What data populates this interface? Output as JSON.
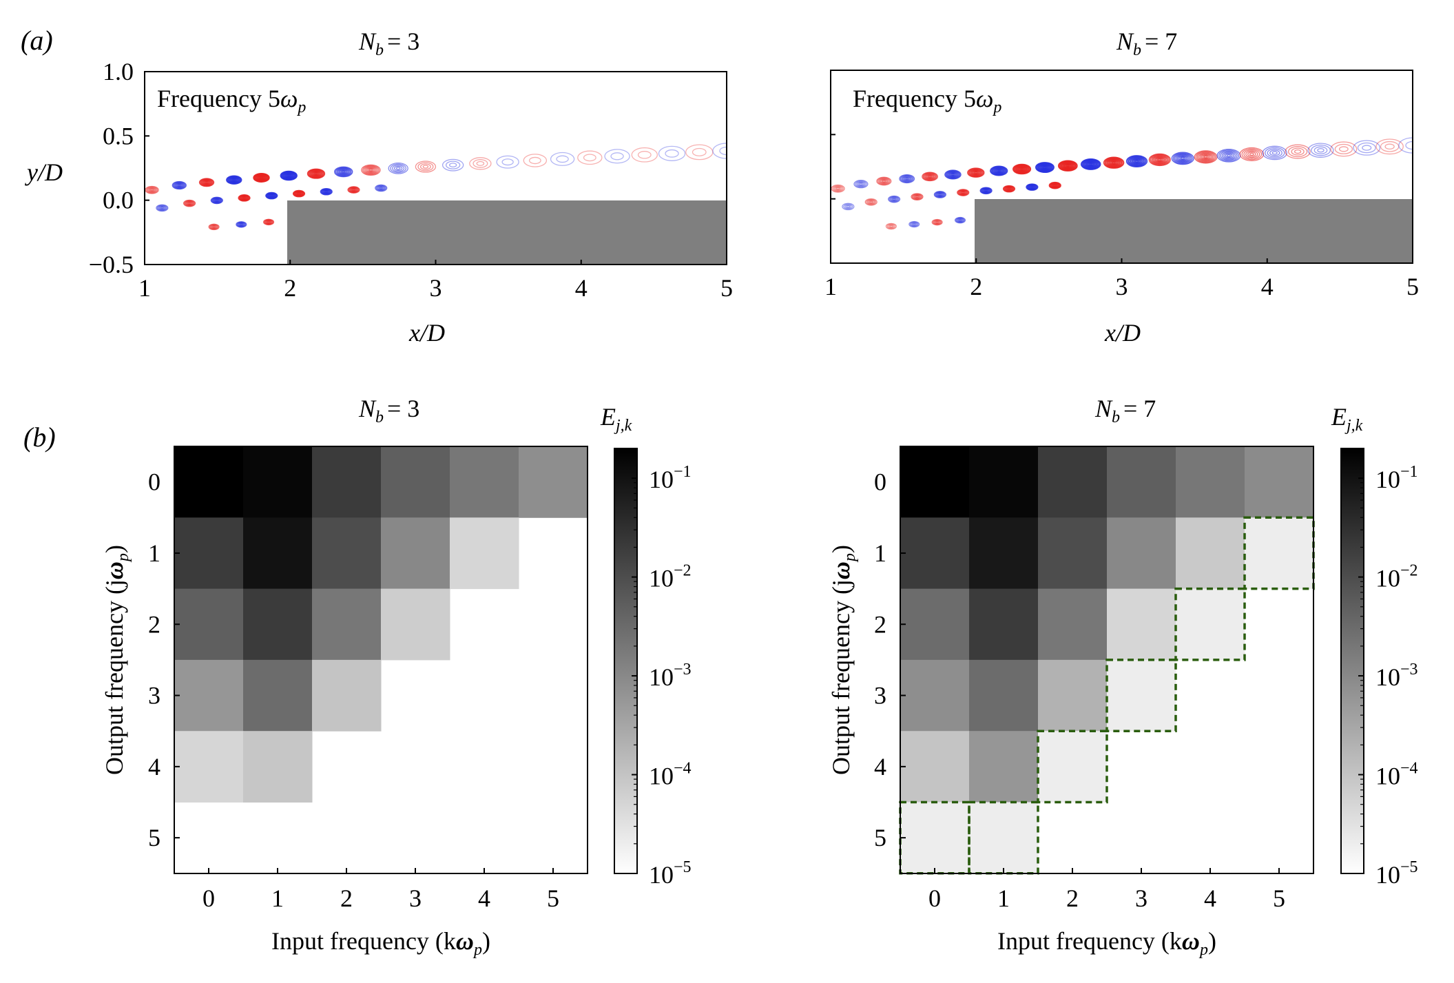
{
  "figure": {
    "panel_a_label": "(a)",
    "panel_b_label": "(b)"
  },
  "chart_data": [
    {
      "type": "contour",
      "panel": "a-left",
      "title": "N_b = 3",
      "annotation": "Frequency 5ω_p",
      "xlabel": "x/D",
      "ylabel": "y/D",
      "xlim": [
        1,
        5
      ],
      "ylim": [
        -0.5,
        1.0
      ],
      "xticks": [
        "1",
        "2",
        "3",
        "4",
        "5"
      ],
      "yticks": [
        "1.0",
        "0.5",
        "0.0",
        "−0.5"
      ],
      "step_body": {
        "x_start": 2,
        "x_end": 5,
        "y_top": 0.0,
        "y_bottom": -0.5
      },
      "colors": {
        "positive": "#e8221f",
        "negative": "#2630e0",
        "body": "#7f7f7f"
      }
    },
    {
      "type": "contour",
      "panel": "a-right",
      "title": "N_b = 7",
      "annotation": "Frequency 5ω_p",
      "xlabel": "x/D",
      "ylabel": "y/D",
      "xlim": [
        1,
        5
      ],
      "ylim": [
        -0.5,
        1.0
      ],
      "xticks": [
        "1",
        "2",
        "3",
        "4",
        "5"
      ],
      "yticks": [],
      "step_body": {
        "x_start": 2,
        "x_end": 5,
        "y_top": 0.0,
        "y_bottom": -0.5
      },
      "colors": {
        "positive": "#e8221f",
        "negative": "#2630e0",
        "body": "#7f7f7f"
      }
    },
    {
      "type": "heatmap",
      "panel": "b-left",
      "title": "N_b = 3",
      "xlabel": "Input frequency (kω_p)",
      "ylabel": "Output frequency (jω_p)",
      "x": [
        0,
        1,
        2,
        3,
        4,
        5
      ],
      "y": [
        0,
        1,
        2,
        3,
        4,
        5
      ],
      "colorbar_label": "E_j,k",
      "colorbar_scale": "log",
      "colorbar_range": [
        1e-05,
        0.2
      ],
      "colorbar_ticks": [
        "10^-1",
        "10^-2",
        "10^-3",
        "10^-4",
        "10^-5"
      ],
      "values": [
        [
          0.2,
          0.15,
          0.02,
          0.005,
          0.002,
          0.0008
        ],
        [
          0.02,
          0.1,
          0.01,
          0.001,
          5e-05,
          null
        ],
        [
          0.005,
          0.02,
          0.002,
          7e-05,
          null,
          null
        ],
        [
          0.0006,
          0.003,
          0.0001,
          null,
          null,
          null
        ],
        [
          5e-05,
          9e-05,
          null,
          null,
          null,
          null
        ],
        [
          null,
          null,
          null,
          null,
          null,
          null
        ]
      ],
      "highlighted_cells": []
    },
    {
      "type": "heatmap",
      "panel": "b-right",
      "title": "N_b = 7",
      "xlabel": "Input frequency (kω_p)",
      "ylabel": "Output frequency (jω_p)",
      "x": [
        0,
        1,
        2,
        3,
        4,
        5
      ],
      "y": [
        0,
        1,
        2,
        3,
        4,
        5
      ],
      "colorbar_label": "E_j,k",
      "colorbar_scale": "log",
      "colorbar_range": [
        1e-05,
        0.2
      ],
      "colorbar_ticks": [
        "10^-1",
        "10^-2",
        "10^-3",
        "10^-4",
        "10^-5"
      ],
      "values": [
        [
          0.2,
          0.15,
          0.02,
          0.005,
          0.002,
          0.0009
        ],
        [
          0.02,
          0.08,
          0.01,
          0.001,
          8e-05,
          2e-05
        ],
        [
          0.003,
          0.02,
          0.002,
          5e-05,
          2e-05,
          null
        ],
        [
          0.0008,
          0.003,
          0.0002,
          2e-05,
          null,
          null
        ],
        [
          0.0001,
          0.0006,
          2e-05,
          null,
          null,
          null
        ],
        [
          2e-05,
          2e-05,
          null,
          null,
          null,
          null
        ]
      ],
      "highlighted_cells": [
        [
          1,
          5
        ],
        [
          2,
          4
        ],
        [
          3,
          3
        ],
        [
          4,
          2
        ],
        [
          5,
          0
        ],
        [
          5,
          1
        ]
      ],
      "highlight_color": "#2a5d0e"
    }
  ]
}
